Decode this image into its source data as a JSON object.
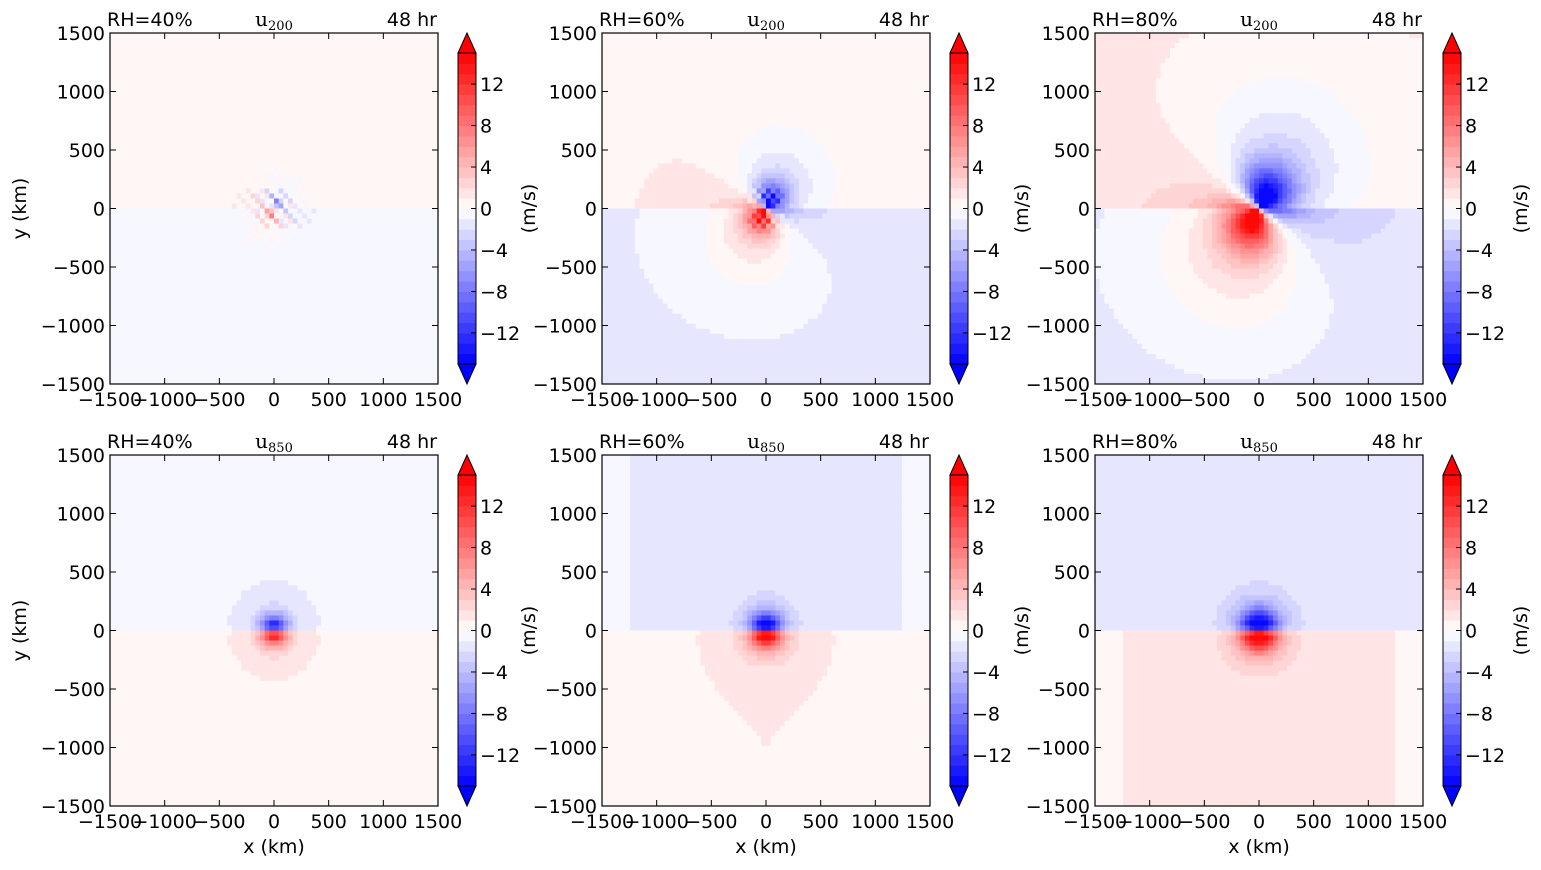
{
  "chart_data": {
    "type": "heatmap",
    "xlabel": "x (km)",
    "ylabel": "y (km)",
    "colorbar_label": "(m/s)",
    "xlim": [
      -1500,
      1500
    ],
    "ylim": [
      -1500,
      1500
    ],
    "xticks": [
      -1500,
      -1000,
      -500,
      0,
      500,
      1000,
      1500
    ],
    "yticks": [
      -1500,
      -1000,
      -500,
      0,
      500,
      1000,
      1500
    ],
    "xtick_labels": [
      "−1500",
      "−1000",
      "−500",
      "0",
      "500",
      "1000",
      "1500"
    ],
    "ytick_labels": [
      "−1500",
      "−1000",
      "−500",
      "0",
      "500",
      "1000",
      "1500"
    ],
    "colorbar": {
      "cmap": "bwr",
      "range": [
        -15,
        15
      ],
      "extend": "both",
      "levels": 30,
      "ticks": [
        -12,
        -8,
        -4,
        0,
        4,
        8,
        12
      ],
      "tick_labels": [
        "−12",
        "−8",
        "−4",
        "0",
        "4",
        "8",
        "12"
      ],
      "low_color": "#0000ff",
      "mid_color": "#ffffff",
      "high_color": "#ff0000"
    },
    "panels": [
      {
        "rh": "RH=40%",
        "var": "u",
        "level": "200",
        "time": "48 hr",
        "pattern": "upper",
        "strength": 0.35,
        "extent": 260,
        "bg_top": 0.7,
        "bg_bottom": -0.7
      },
      {
        "rh": "RH=60%",
        "var": "u",
        "level": "200",
        "time": "48 hr",
        "pattern": "upper",
        "strength": 0.8,
        "extent": 560,
        "bg_top": 1.0,
        "bg_bottom": -1.2
      },
      {
        "rh": "RH=80%",
        "var": "u",
        "level": "200",
        "time": "48 hr",
        "pattern": "upper",
        "strength": 1.0,
        "extent": 900,
        "bg_top": 1.3,
        "bg_bottom": -1.6
      },
      {
        "rh": "RH=40%",
        "var": "u",
        "level": "850",
        "time": "48 hr",
        "pattern": "lower",
        "strength": 0.85,
        "extent": 380,
        "bg_top": -0.9,
        "bg_bottom": 0.9
      },
      {
        "rh": "RH=60%",
        "var": "u",
        "level": "850",
        "time": "48 hr",
        "pattern": "lower",
        "strength": 1.0,
        "extent": 460,
        "bg_top": -1.1,
        "bg_bottom": 1.0
      },
      {
        "rh": "RH=80%",
        "var": "u",
        "level": "850",
        "time": "48 hr",
        "pattern": "lower",
        "strength": 1.0,
        "extent": 560,
        "bg_top": -1.2,
        "bg_bottom": 1.1
      }
    ]
  }
}
